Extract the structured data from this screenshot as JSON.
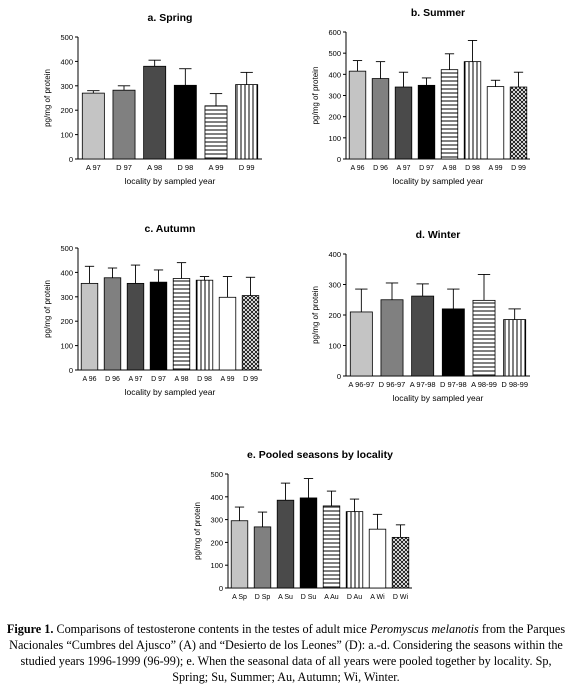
{
  "chart_data": [
    {
      "type": "bar",
      "title": "a. Spring",
      "xlabel": "locality by sampled year",
      "ylabel": "pg/mg of protein",
      "ylim": [
        0,
        500
      ],
      "yticks": [
        0,
        100,
        200,
        300,
        400,
        500
      ],
      "grid": false,
      "categories": [
        "A 97",
        "D 97",
        "A 98",
        "D 98",
        "A 99",
        "D 99"
      ],
      "values": [
        270,
        282,
        380,
        302,
        218,
        305
      ],
      "errors": [
        10,
        18,
        25,
        68,
        50,
        50
      ],
      "fills": [
        "lightgray",
        "gray",
        "dimgray",
        "black",
        "hstripe",
        "vstripe"
      ]
    },
    {
      "type": "bar",
      "title": "b. Summer",
      "xlabel": "locality by sampled year",
      "ylabel": "pg/mg of protein",
      "ylim": [
        0,
        600
      ],
      "yticks": [
        0,
        100,
        200,
        300,
        400,
        500,
        600
      ],
      "grid": false,
      "categories": [
        "A 96",
        "D 96",
        "A 97",
        "D 97",
        "A 98",
        "D 98",
        "A 99",
        "D 99"
      ],
      "values": [
        415,
        380,
        340,
        348,
        422,
        460,
        342,
        340
      ],
      "errors": [
        50,
        80,
        70,
        35,
        75,
        100,
        30,
        70
      ],
      "fills": [
        "lightgray",
        "gray",
        "dimgray",
        "black",
        "hstripe",
        "vstripe",
        "white",
        "hatch"
      ]
    },
    {
      "type": "bar",
      "title": "c. Autumn",
      "xlabel": "locality by sampled year",
      "ylabel": "pg/mg of protein",
      "ylim": [
        0,
        500
      ],
      "yticks": [
        0,
        100,
        200,
        300,
        400,
        500
      ],
      "grid": false,
      "categories": [
        "A 96",
        "D 96",
        "A 97",
        "D 97",
        "A 98",
        "D 98",
        "A 99",
        "D 99"
      ],
      "values": [
        355,
        378,
        355,
        360,
        375,
        368,
        298,
        305
      ],
      "errors": [
        70,
        40,
        75,
        50,
        65,
        15,
        85,
        75
      ],
      "fills": [
        "lightgray",
        "gray",
        "dimgray",
        "black",
        "hstripe",
        "vstripe",
        "white",
        "hatch"
      ]
    },
    {
      "type": "bar",
      "title": "d. Winter",
      "xlabel": "locality by sampled year",
      "ylabel": "pg/mg of protein",
      "ylim": [
        0,
        400
      ],
      "yticks": [
        0,
        100,
        200,
        300,
        400
      ],
      "grid": false,
      "categories": [
        "A 96-97",
        "D 96-97",
        "A 97-98",
        "D 97-98",
        "A 98-99",
        "D 98-99"
      ],
      "category_labels": [
        "A 96-97",
        "D 96-97",
        "A 97-98",
        "D 97-98",
        "A 98-99",
        "D 98-99"
      ],
      "values": [
        210,
        250,
        262,
        220,
        248,
        185
      ],
      "errors": [
        75,
        55,
        40,
        65,
        85,
        35
      ],
      "fills": [
        "lightgray",
        "gray",
        "dimgray",
        "black",
        "hstripe",
        "vstripe"
      ]
    },
    {
      "type": "bar",
      "title": "e. Pooled seasons by locality",
      "xlabel": "",
      "ylabel": "pg/mg of protein",
      "ylim": [
        0,
        500
      ],
      "yticks": [
        0,
        100,
        200,
        300,
        400,
        500
      ],
      "grid": false,
      "categories": [
        "A Sp",
        "D Sp",
        "A Su",
        "D Su",
        "A Au",
        "D Au",
        "A Wi",
        "D Wi"
      ],
      "values": [
        295,
        268,
        385,
        395,
        360,
        335,
        258,
        222
      ],
      "errors": [
        60,
        65,
        75,
        85,
        65,
        55,
        65,
        55
      ],
      "fills": [
        "lightgray",
        "gray",
        "dimgray",
        "black",
        "hstripe",
        "vstripe",
        "white",
        "hatch"
      ]
    }
  ],
  "caption": {
    "label": "Figure 1.",
    "text_before_species": " Comparisons of testosterone contents in the testes of adult mice ",
    "species": "Peromyscus melanotis",
    "text_after_species": " from the Parques Nacionales “Cumbres del Ajusco” (A) and “Desierto de los Leones” (D): a.-d. Considering the seasons within the studied years 1996-1999 (96-99); e. When the seasonal data of all years were pooled together by locality. Sp, Spring; Su, Summer; Au, Autumn; Wi, Winter."
  }
}
